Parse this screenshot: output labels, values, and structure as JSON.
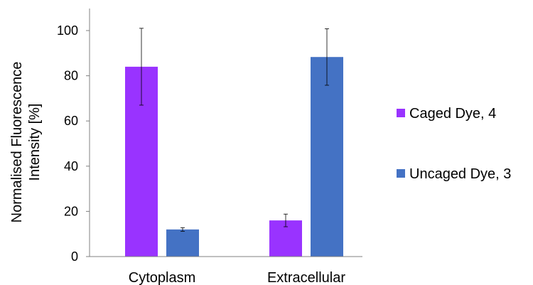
{
  "chart_data": {
    "type": "bar",
    "title": "",
    "xlabel": "",
    "ylabel": [
      "Normalised Fluorescence",
      "Intensity [%]"
    ],
    "ylim": [
      0,
      110
    ],
    "yticks": [
      0,
      20,
      40,
      60,
      80,
      100
    ],
    "categories": [
      "Cytoplasm",
      "Extracellular"
    ],
    "series": [
      {
        "name": "Caged Dye, 4",
        "color": "#9933FF",
        "values": [
          84,
          16
        ],
        "errors": [
          17,
          2.8
        ]
      },
      {
        "name": "Uncaged Dye, 3",
        "color": "#4472C4",
        "values": [
          12,
          88.3
        ],
        "errors": [
          0.8,
          12.5
        ]
      }
    ],
    "legend_position": "right",
    "grid": false
  }
}
